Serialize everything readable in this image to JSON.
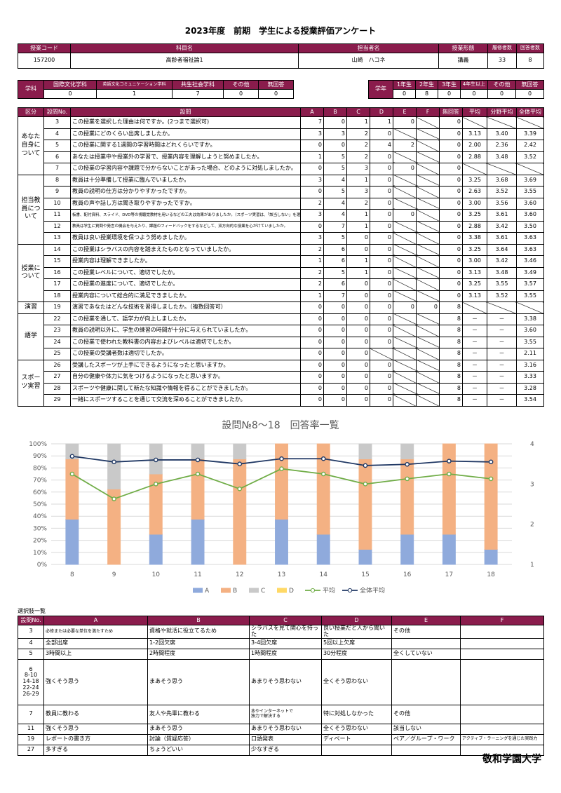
{
  "title": "2023年度　前期　学生による授業評価アンケート",
  "course": {
    "headers": [
      "授業コード",
      "科目名",
      "担当者名",
      "授業形態",
      "履修者数",
      "回答者数"
    ],
    "values": [
      157200,
      "高齢者福祉論1",
      "山崎　ハコネ",
      "講義",
      33,
      8
    ]
  },
  "department": {
    "label": "学科",
    "headers": [
      "国際文化学科",
      "英語文化コミュニケーション学科",
      "共生社会学科",
      "その他",
      "無回答"
    ],
    "values": [
      0,
      1,
      7,
      0,
      0
    ]
  },
  "year": {
    "label": "学年",
    "headers": [
      "1年生",
      "2年生",
      "3年生",
      "4年生以上",
      "その他",
      "無回答"
    ],
    "values": [
      0,
      8,
      0,
      0,
      0,
      0
    ]
  },
  "survey": {
    "headers": [
      "区分",
      "設問No.",
      "設問",
      "A",
      "B",
      "C",
      "D",
      "E",
      "F",
      "無回答",
      "平均",
      "分野平均",
      "全体平均"
    ],
    "sections": [
      {
        "label": "あなた自身について",
        "rows": [
          {
            "no": 3,
            "question": "この授業を選択した理由は何ですか。(2つまで選択可)",
            "cells": [
              7,
              0,
              1,
              1,
              0,
              null,
              0,
              null,
              null,
              null
            ]
          },
          {
            "no": 4,
            "question": "この授業にどのくらい出席しましたか。",
            "cells": [
              3,
              3,
              2,
              0,
              null,
              null,
              0,
              "3.13",
              "3.40",
              "3.39"
            ]
          },
          {
            "no": 5,
            "question": "この授業に関する1週間の学習時間はどれくらいですか。",
            "cells": [
              0,
              0,
              2,
              4,
              2,
              null,
              0,
              "2.00",
              "2.36",
              "2.42"
            ]
          },
          {
            "no": 6,
            "question": "あなたは授業中や授業外の学習で、授業内容を理解しようと努めましたか。",
            "cells": [
              1,
              5,
              2,
              0,
              null,
              null,
              0,
              "2.88",
              "3.48",
              "3.52"
            ]
          },
          {
            "no": 7,
            "question": "この授業の学習内容や課題で分からないことがあった場合、どのように対処しましたか。",
            "cells": [
              0,
              5,
              3,
              0,
              0,
              null,
              0,
              null,
              null,
              null
            ]
          }
        ]
      },
      {
        "label": "担当教員について",
        "rows": [
          {
            "no": 8,
            "question": "教員は十分準備して授業に臨んでいましたか。",
            "cells": [
              3,
              4,
              1,
              0,
              null,
              null,
              0,
              "3.25",
              "3.68",
              "3.69"
            ]
          },
          {
            "no": 9,
            "question": "教員の説明の仕方は分かりやすかったですか。",
            "cells": [
              0,
              5,
              3,
              0,
              null,
              null,
              0,
              "2.63",
              "3.52",
              "3.55"
            ]
          },
          {
            "no": 10,
            "question": "教員の声や話し方は聞き取りやすかったですか。",
            "cells": [
              2,
              4,
              2,
              0,
              null,
              null,
              0,
              "3.00",
              "3.56",
              "3.60"
            ]
          },
          {
            "no": 11,
            "question": "板書、配付資料、スライド、DVD等の視聴覚教材を用いるなどの工夫は効果がありましたか。（スポーツ実習は、「該当しない」を選んでください）",
            "cells": [
              3,
              4,
              1,
              0,
              0,
              null,
              0,
              "3.25",
              "3.61",
              "3.60"
            ]
          },
          {
            "no": 12,
            "question": "教員は学生に質問や発言の機会を与えたり、課題のフィードバックをするなどして、双方向的な授業を心がけていましたか。",
            "cells": [
              0,
              7,
              1,
              0,
              null,
              null,
              0,
              "2.88",
              "3.42",
              "3.50"
            ]
          },
          {
            "no": 13,
            "question": "教員は良い授業環境を保つよう努めましたか。",
            "cells": [
              3,
              5,
              0,
              0,
              null,
              null,
              0,
              "3.38",
              "3.61",
              "3.63"
            ]
          }
        ]
      },
      {
        "label": "授業について",
        "rows": [
          {
            "no": 14,
            "question": "この授業はシラバスの内容を踏まえたものとなっていましたか。",
            "cells": [
              2,
              6,
              0,
              0,
              null,
              null,
              0,
              "3.25",
              "3.64",
              "3.63"
            ]
          },
          {
            "no": 15,
            "question": "授業内容は理解できましたか。",
            "cells": [
              1,
              6,
              1,
              0,
              null,
              null,
              0,
              "3.00",
              "3.42",
              "3.46"
            ]
          },
          {
            "no": 16,
            "question": "この授業レベルについて、適切でしたか。",
            "cells": [
              2,
              5,
              1,
              0,
              null,
              null,
              0,
              "3.13",
              "3.48",
              "3.49"
            ]
          },
          {
            "no": 17,
            "question": "この授業の進度について、適切でしたか。",
            "cells": [
              2,
              6,
              0,
              0,
              null,
              null,
              0,
              "3.25",
              "3.55",
              "3.57"
            ]
          },
          {
            "no": 18,
            "question": "授業内容について総合的に満足できましたか。",
            "cells": [
              1,
              7,
              0,
              0,
              null,
              null,
              0,
              "3.13",
              "3.52",
              "3.55"
            ]
          }
        ]
      },
      {
        "label": "演習",
        "rows": [
          {
            "no": 19,
            "question": "演習であなたはどんな技術を習得しましたか。（複数回答可）",
            "cells": [
              0,
              0,
              0,
              0,
              0,
              0,
              8,
              null,
              null,
              null
            ]
          }
        ]
      },
      {
        "label": "語学",
        "rows": [
          {
            "no": 22,
            "question": "この授業を通して、語学力が向上しましたか。",
            "cells": [
              0,
              0,
              0,
              0,
              null,
              null,
              8,
              "－",
              "－",
              "3.38"
            ]
          },
          {
            "no": 23,
            "question": "教員の説明以外に、学生の練習の時間が十分に与えられていましたか。",
            "cells": [
              0,
              0,
              0,
              0,
              null,
              null,
              8,
              "－",
              "－",
              "3.60"
            ]
          },
          {
            "no": 24,
            "question": "この授業で使われた教科書の内容およびレベルは適切でしたか。",
            "cells": [
              0,
              0,
              0,
              0,
              null,
              null,
              8,
              "－",
              "－",
              "3.55"
            ]
          },
          {
            "no": 25,
            "question": "この授業の受講者数は適切でしたか。",
            "cells": [
              0,
              0,
              0,
              null,
              null,
              null,
              8,
              "－",
              "－",
              "2.11"
            ]
          }
        ]
      },
      {
        "label": "スポーツ実習",
        "rows": [
          {
            "no": 26,
            "question": "受講したスポーツが上手にできるようになったと思いますか。",
            "cells": [
              0,
              0,
              0,
              0,
              null,
              null,
              8,
              "－",
              "－",
              "3.16"
            ]
          },
          {
            "no": 27,
            "question": "自分の健康や体力に気をつけるようになったと思いますか。",
            "cells": [
              0,
              0,
              0,
              0,
              null,
              null,
              8,
              "－",
              "－",
              "3.33"
            ]
          },
          {
            "no": 28,
            "question": "スポーツや健康に関して新たな知識や情報を得ることができましたか。",
            "cells": [
              0,
              0,
              0,
              0,
              null,
              null,
              8,
              "－",
              "－",
              "3.28"
            ]
          },
          {
            "no": 29,
            "question": "一緒にスポーツすることを通じて交流を深めることができましたか。",
            "cells": [
              0,
              0,
              0,
              0,
              null,
              null,
              8,
              "－",
              "－",
              "3.54"
            ]
          }
        ]
      }
    ]
  },
  "chart_data": {
    "type": "bar",
    "title": "設問№8〜18　回答率一覧",
    "categories": [
      "8",
      "9",
      "10",
      "11",
      "12",
      "13",
      "14",
      "15",
      "16",
      "17",
      "18"
    ],
    "series": [
      {
        "name": "A",
        "color": "#8faadc",
        "values": [
          37.5,
          0,
          25,
          37.5,
          0,
          37.5,
          25,
          12.5,
          25,
          25,
          12.5
        ]
      },
      {
        "name": "B",
        "color": "#f4b183",
        "values": [
          50,
          62.5,
          50,
          50,
          87.5,
          62.5,
          75,
          75,
          62.5,
          75,
          87.5
        ]
      },
      {
        "name": "C",
        "color": "#c9c9c9",
        "values": [
          12.5,
          37.5,
          25,
          12.5,
          12.5,
          0,
          0,
          12.5,
          12.5,
          0,
          0
        ]
      },
      {
        "name": "D",
        "color": "#ffd966",
        "values": [
          0,
          0,
          0,
          0,
          0,
          0,
          0,
          0,
          0,
          0,
          0
        ]
      },
      {
        "name": "平均",
        "color": "#70ad47",
        "type": "line",
        "axis": "y2",
        "values": [
          3.25,
          2.63,
          3.0,
          3.25,
          2.88,
          3.38,
          3.25,
          3.0,
          3.13,
          3.25,
          3.13
        ]
      },
      {
        "name": "全体平均",
        "color": "#203864",
        "type": "line",
        "axis": "y2",
        "values": [
          3.69,
          3.55,
          3.6,
          3.6,
          3.5,
          3.63,
          3.63,
          3.46,
          3.49,
          3.57,
          3.55
        ]
      }
    ],
    "ylim": [
      0,
      100
    ],
    "yticks": [
      {
        "value": 0,
        "label": "0%"
      },
      {
        "value": 10,
        "label": "10%"
      },
      {
        "value": 20,
        "label": "20%"
      },
      {
        "value": 30,
        "label": "30%"
      },
      {
        "value": 40,
        "label": "40%"
      },
      {
        "value": 50,
        "label": "50%"
      },
      {
        "value": 60,
        "label": "60%"
      },
      {
        "value": 70,
        "label": "70%"
      },
      {
        "value": 80,
        "label": "80%"
      },
      {
        "value": 90,
        "label": "90%"
      },
      {
        "value": 100,
        "label": "100%"
      }
    ],
    "y2lim": [
      1,
      4
    ],
    "y2ticks": [
      1,
      2,
      3,
      4
    ],
    "grid": true,
    "legend": "bottom"
  },
  "options": {
    "caption": "選択肢一覧",
    "headers": [
      "設問No.",
      "A",
      "B",
      "C",
      "D",
      "E",
      "F"
    ],
    "rows": [
      {
        "no": "3",
        "cells": [
          "必修または必要な単位を満たすため",
          "資格や就活に役立てるため",
          "シラバスを見て関心を持った",
          "良い授業だと人から聞いた",
          "その他",
          null
        ]
      },
      {
        "no": "4",
        "cells": [
          "全部出席",
          "1-2回欠席",
          "3-4回欠席",
          "5回以上欠席",
          null,
          null
        ]
      },
      {
        "no": "5",
        "cells": [
          "3時間以上",
          "2時間程度",
          "1時間程度",
          "30分程度",
          "全くしていない",
          null
        ]
      },
      {
        "no": "6\n8-10\n14-18\n22-24\n26-29",
        "cells": [
          "強くそう思う",
          "まあそう思う",
          "あまりそう思わない",
          "全くそう思わない",
          null,
          null
        ]
      },
      {
        "no": "7",
        "cells": [
          "教員に教わる",
          "友人や先輩に教わる",
          "本やインターネットで\n独力で解決する",
          "特に対処しなかった",
          "その他",
          null
        ]
      },
      {
        "no": "11",
        "cells": [
          "強くそう思う",
          "まあそう思う",
          "あまりそう思わない",
          "全くそう思わない",
          "該当しない",
          null
        ]
      },
      {
        "no": "19",
        "cells": [
          "レポートの書き方",
          "討論（質疑応答）",
          "口頭発表",
          "ディベート",
          "ペア／グループ・ワーク",
          "アクティブ・ラーニングを通じた実践力"
        ]
      },
      {
        "no": "27",
        "cells": [
          "多すぎる",
          "ちょうどいい",
          "少なすぎる",
          null,
          null,
          null
        ]
      }
    ]
  },
  "footer": "敬和学園大学"
}
